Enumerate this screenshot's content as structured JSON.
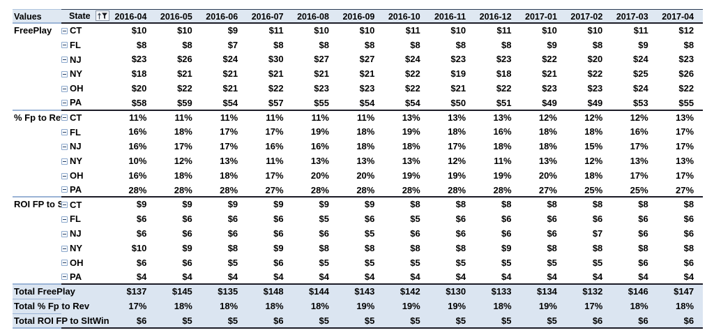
{
  "colors": {
    "header_fill": "#dfe8f2",
    "total_row_fill": "#dbe5f1",
    "dark_border": "#1b1b26",
    "light_blue_border": "#9ab3d5",
    "text": "#000000"
  },
  "table": {
    "header": {
      "values_label": "Values",
      "state_label": "State",
      "filter_icon": "sort-filter-icon",
      "months": [
        "2016-04",
        "2016-05",
        "2016-06",
        "2016-07",
        "2016-08",
        "2016-09",
        "2016-10",
        "2016-11",
        "2016-12",
        "2017-01",
        "2017-02",
        "2017-03",
        "2017-04"
      ]
    },
    "sections": [
      {
        "label": "FreePlay",
        "format": "currency",
        "rows": [
          {
            "state": "CT",
            "values": [
              10,
              10,
              9,
              11,
              10,
              10,
              11,
              10,
              11,
              10,
              10,
              11,
              12
            ]
          },
          {
            "state": "FL",
            "values": [
              8,
              8,
              7,
              8,
              8,
              8,
              8,
              8,
              8,
              9,
              8,
              9,
              8
            ]
          },
          {
            "state": "NJ",
            "values": [
              23,
              26,
              24,
              30,
              27,
              27,
              24,
              23,
              23,
              22,
              20,
              24,
              23
            ]
          },
          {
            "state": "NY",
            "values": [
              18,
              21,
              21,
              21,
              21,
              21,
              22,
              19,
              18,
              21,
              22,
              25,
              26
            ]
          },
          {
            "state": "OH",
            "values": [
              20,
              22,
              21,
              22,
              23,
              23,
              22,
              21,
              22,
              23,
              23,
              24,
              22
            ]
          },
          {
            "state": "PA",
            "values": [
              58,
              59,
              54,
              57,
              55,
              54,
              54,
              50,
              51,
              49,
              49,
              53,
              55
            ]
          }
        ]
      },
      {
        "label": "% Fp to Rev",
        "format": "percent",
        "rows": [
          {
            "state": "CT",
            "values": [
              11,
              11,
              11,
              11,
              11,
              11,
              13,
              13,
              13,
              12,
              12,
              12,
              13
            ]
          },
          {
            "state": "FL",
            "values": [
              16,
              18,
              17,
              17,
              19,
              18,
              19,
              18,
              16,
              18,
              18,
              16,
              17
            ]
          },
          {
            "state": "NJ",
            "values": [
              16,
              17,
              17,
              16,
              16,
              18,
              18,
              17,
              18,
              18,
              15,
              17,
              17
            ]
          },
          {
            "state": "NY",
            "values": [
              10,
              12,
              13,
              11,
              13,
              13,
              13,
              12,
              11,
              13,
              12,
              13,
              13
            ]
          },
          {
            "state": "OH",
            "values": [
              16,
              18,
              18,
              17,
              20,
              20,
              19,
              19,
              19,
              20,
              18,
              17,
              17
            ]
          },
          {
            "state": "PA",
            "values": [
              28,
              28,
              28,
              27,
              28,
              28,
              28,
              28,
              28,
              27,
              25,
              25,
              27
            ]
          }
        ]
      },
      {
        "label": "ROI FP to S",
        "format": "currency",
        "rows": [
          {
            "state": "CT",
            "values": [
              9,
              9,
              9,
              9,
              9,
              9,
              8,
              8,
              8,
              8,
              8,
              8,
              8
            ]
          },
          {
            "state": "FL",
            "values": [
              6,
              6,
              6,
              6,
              5,
              6,
              5,
              6,
              6,
              6,
              6,
              6,
              6
            ]
          },
          {
            "state": "NJ",
            "values": [
              6,
              6,
              6,
              6,
              6,
              5,
              6,
              6,
              6,
              6,
              7,
              6,
              6
            ]
          },
          {
            "state": "NY",
            "values": [
              10,
              9,
              8,
              9,
              8,
              8,
              8,
              8,
              9,
              8,
              8,
              8,
              8
            ]
          },
          {
            "state": "OH",
            "values": [
              6,
              6,
              5,
              6,
              5,
              5,
              5,
              5,
              5,
              5,
              5,
              6,
              6
            ]
          },
          {
            "state": "PA",
            "values": [
              4,
              4,
              4,
              4,
              4,
              4,
              4,
              4,
              4,
              4,
              4,
              4,
              4
            ]
          }
        ]
      }
    ],
    "totals": [
      {
        "label": "Total FreePlay",
        "format": "currency",
        "values": [
          137,
          145,
          135,
          148,
          144,
          143,
          142,
          130,
          133,
          134,
          132,
          146,
          147
        ]
      },
      {
        "label": "Total % Fp to Rev",
        "format": "percent",
        "values": [
          17,
          18,
          18,
          18,
          18,
          19,
          19,
          19,
          18,
          19,
          17,
          18,
          18
        ]
      },
      {
        "label": "Total ROI FP to SltWin",
        "format": "currency",
        "values": [
          6,
          5,
          5,
          6,
          5,
          5,
          5,
          5,
          5,
          5,
          6,
          6,
          6
        ]
      }
    ]
  }
}
